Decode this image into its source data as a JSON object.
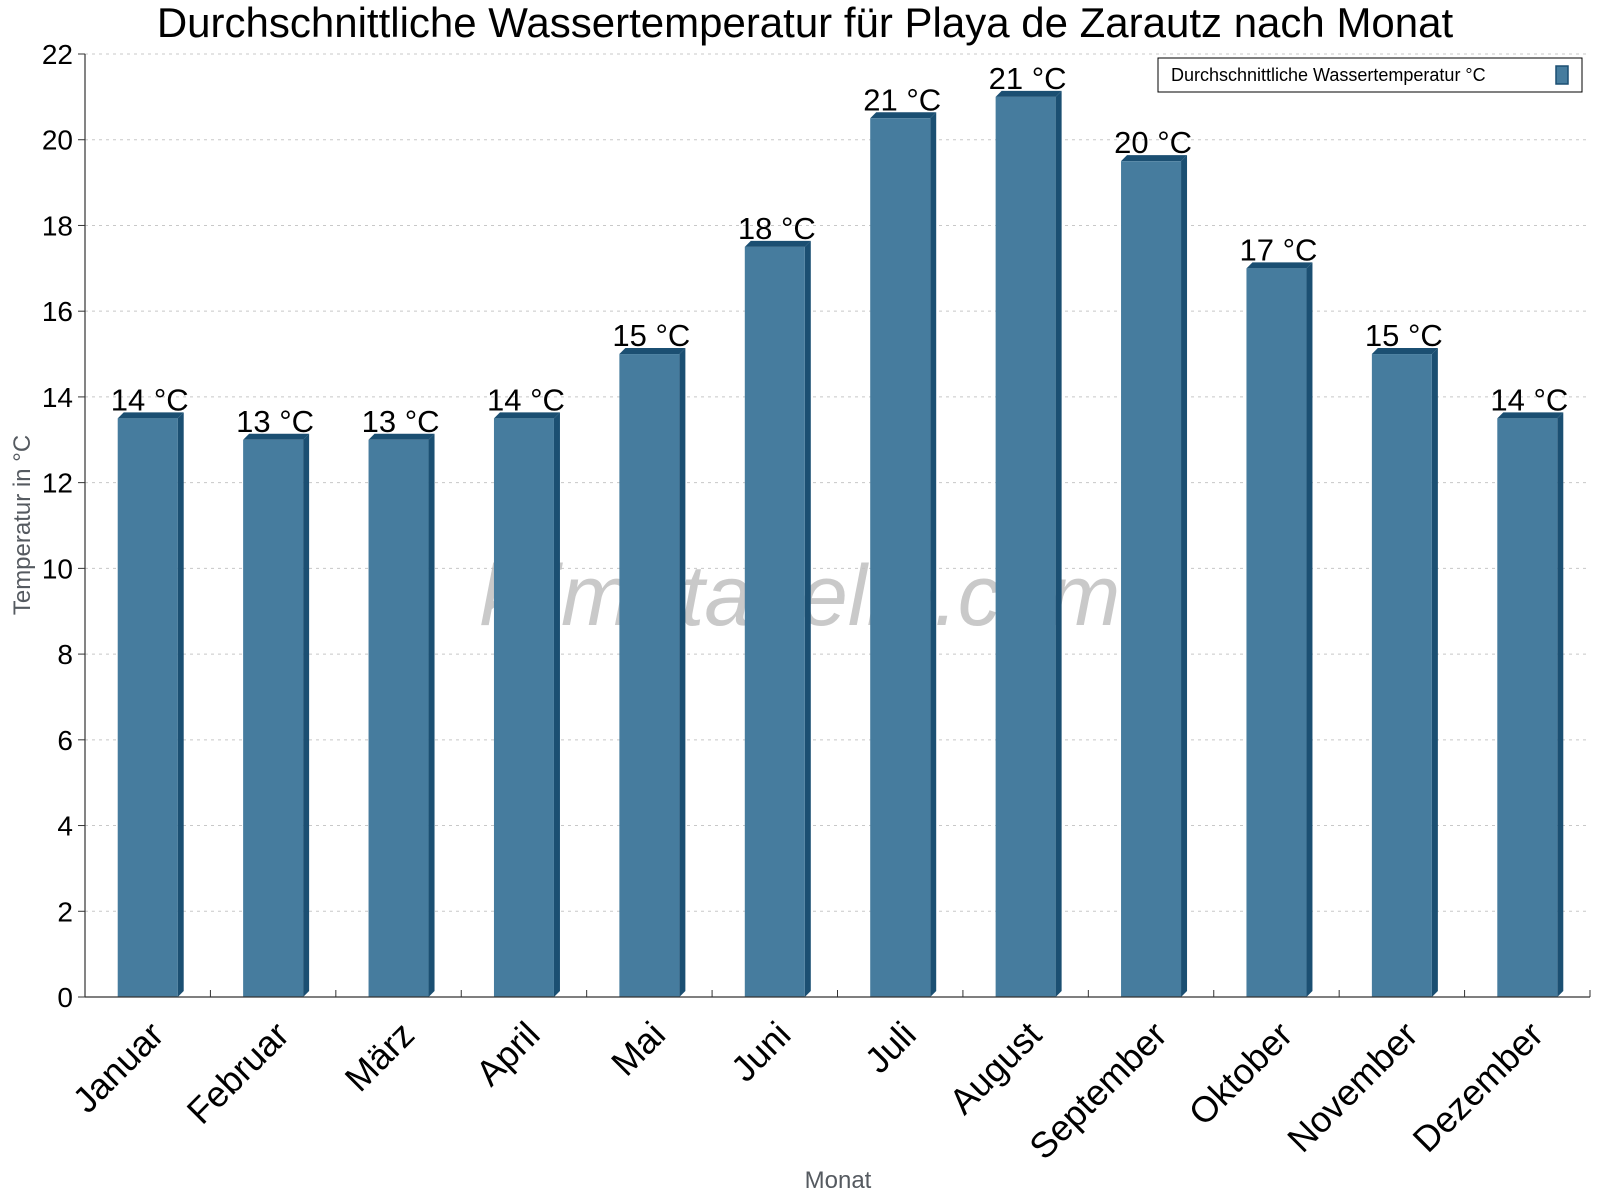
{
  "chart_data": {
    "type": "bar",
    "title": "Durchschnittliche Wassertemperatur für Playa de Zarautz nach Monat",
    "xlabel": "Monat",
    "ylabel": "Temperatur in °C",
    "categories": [
      "Januar",
      "Februar",
      "März",
      "April",
      "Mai",
      "Juni",
      "Juli",
      "August",
      "September",
      "Oktober",
      "November",
      "Dezember"
    ],
    "series": [
      {
        "name": "Durchschnittliche Wassertemperatur °C",
        "values": [
          13.5,
          13.0,
          13.0,
          13.5,
          15.0,
          17.5,
          20.5,
          21.0,
          19.5,
          17.0,
          15.0,
          13.5
        ],
        "data_labels": [
          "14 °C",
          "13 °C",
          "13 °C",
          "14 °C",
          "15 °C",
          "18 °C",
          "21 °C",
          "21 °C",
          "20 °C",
          "17 °C",
          "15 °C",
          "14 °C"
        ]
      }
    ],
    "ylim": [
      0,
      22
    ],
    "yticks": [
      "0",
      "2",
      "4",
      "6",
      "8",
      "10",
      "12",
      "14",
      "16",
      "18",
      "20",
      "22"
    ],
    "grid": true,
    "legend_position": "top-right",
    "colors": {
      "bar": "#467c9e",
      "bar_shade": "#1b4f72"
    }
  },
  "watermark": "klimatabelle.com"
}
